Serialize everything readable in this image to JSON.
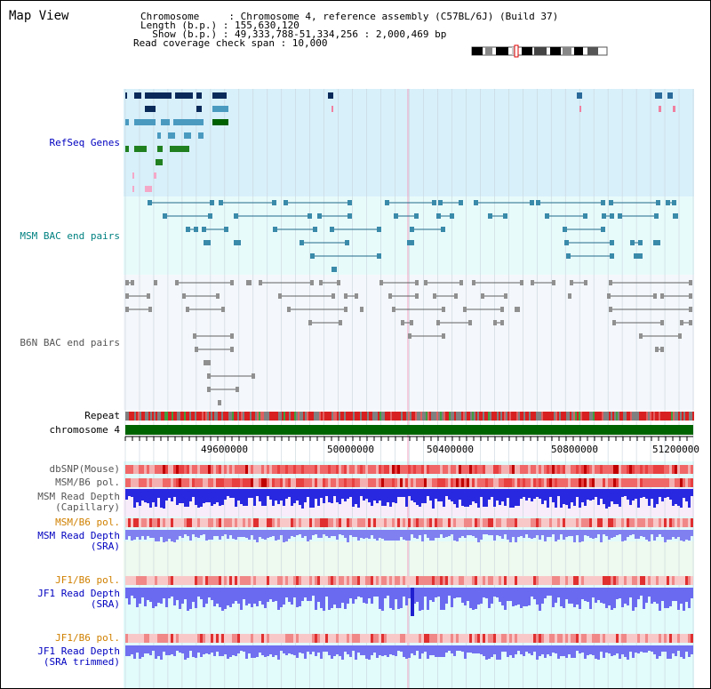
{
  "app_title": "Map View",
  "info": {
    "chromosome": "Chromosome     : Chromosome 4, reference assembly (C57BL/6J) (Build 37)",
    "length": "Length (b.p.) : 155,630,120",
    "show": "  Show (b.p.) : 49,333,788-51,334,256 : 2,000,469 bp",
    "coverage": "Read coverage check span : 10,000"
  },
  "tracks": {
    "refseq": "RefSeq Genes",
    "msm_bac": "MSM BAC end pairs",
    "b6n_bac": "B6N BAC end pairs",
    "repeat": "Repeat",
    "chromosome": "chromosome 4",
    "dbsnp": "dbSNP(Mouse)",
    "msm_b6_pol_1": "MSM/B6 pol.",
    "msm_depth_cap_1": "MSM Read Depth",
    "msm_depth_cap_2": "(Capillary)",
    "msm_b6_pol_2": "MSM/B6 pol.",
    "msm_depth_sra_1": "MSM Read Depth",
    "msm_depth_sra_2": "(SRA)",
    "jf1_b6_pol_1": "JF1/B6 pol.",
    "jf1_depth_sra_1": "JF1 Read Depth",
    "jf1_depth_sra_2": "(SRA)",
    "jf1_b6_pol_2": "JF1/B6 pol.",
    "jf1_depth_trim_1": "JF1 Read Depth",
    "jf1_depth_trim_2": "(SRA trimmed)"
  },
  "axis": {
    "ticks": [
      "49600000",
      "50000000",
      "50400000",
      "50800000",
      "51200000"
    ]
  },
  "colors": {
    "refseq_bg": "#d8f0fa",
    "bac_bg": "#e8fbfb",
    "depth_bg": "#e2fbfb",
    "chromosome_bar": "#006400",
    "snp_red": "#f04040",
    "depth_blue": "#3030e0",
    "depth_light": "#7878f0"
  }
}
